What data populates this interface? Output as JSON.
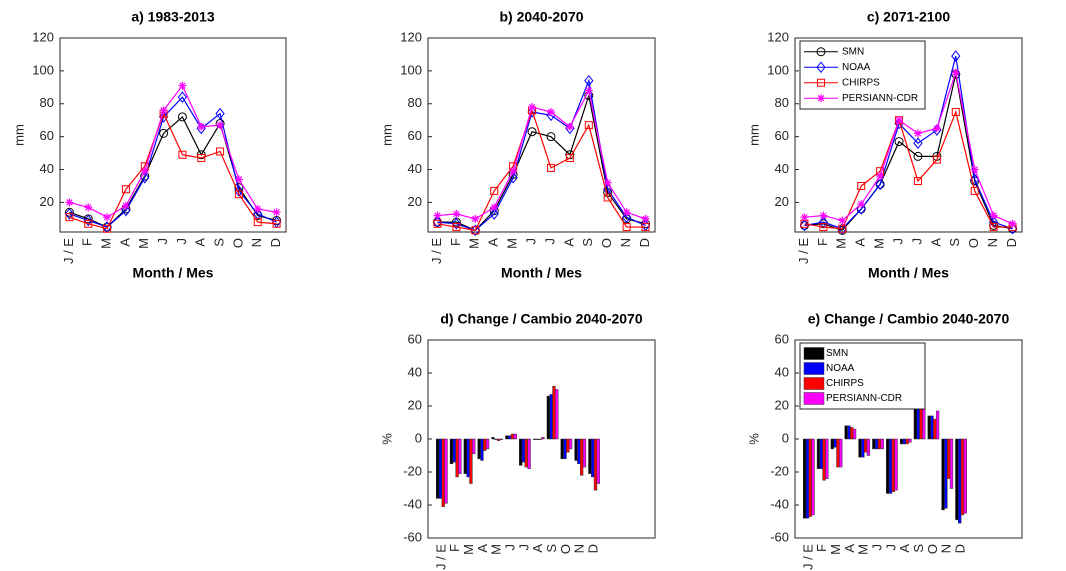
{
  "chart_data": [
    {
      "type": "line",
      "title": "a) 1983-2013",
      "x_label": "Month / Mes",
      "y_label": "mm",
      "categories": [
        "J / E",
        "F",
        "M",
        "A",
        "M",
        "J",
        "J",
        "A",
        "S",
        "O",
        "N",
        "D"
      ],
      "ylim": [
        2,
        120
      ],
      "yticks": [
        20,
        40,
        60,
        80,
        100,
        120
      ],
      "legend": false,
      "series": [
        {
          "name": "SMN",
          "color": "#000000",
          "marker": "o",
          "values": [
            14,
            10,
            5,
            16,
            36,
            62,
            72,
            49,
            68,
            29,
            12,
            9
          ]
        },
        {
          "name": "NOAA",
          "color": "#0000ff",
          "marker": "d",
          "values": [
            13,
            9,
            5,
            15,
            35,
            72,
            84,
            65,
            74,
            27,
            13,
            8
          ]
        },
        {
          "name": "CHIRPS",
          "color": "#ff0000",
          "marker": "s",
          "values": [
            11,
            7,
            4,
            28,
            42,
            74,
            49,
            47,
            51,
            25,
            8,
            7
          ]
        },
        {
          "name": "PERSIANN-CDR",
          "color": "#ff00ff",
          "marker": "*",
          "values": [
            20,
            17,
            11,
            18,
            39,
            76,
            91,
            66,
            67,
            34,
            16,
            14
          ]
        }
      ]
    },
    {
      "type": "line",
      "title": "b) 2040-2070",
      "x_label": "Month / Mes",
      "y_label": "mm",
      "categories": [
        "J / E",
        "F",
        "M",
        "A",
        "M",
        "J",
        "J",
        "A",
        "S",
        "O",
        "N",
        "D"
      ],
      "ylim": [
        2,
        120
      ],
      "yticks": [
        20,
        40,
        60,
        80,
        100,
        120
      ],
      "legend": false,
      "series": [
        {
          "name": "SMN",
          "color": "#000000",
          "marker": "o",
          "values": [
            8,
            8,
            3,
            15,
            37,
            63,
            60,
            49,
            85,
            26,
            10,
            7
          ]
        },
        {
          "name": "NOAA",
          "color": "#0000ff",
          "marker": "d",
          "values": [
            8,
            7,
            3,
            13,
            35,
            75,
            73,
            65,
            94,
            28,
            11,
            6
          ]
        },
        {
          "name": "CHIRPS",
          "color": "#ff0000",
          "marker": "s",
          "values": [
            7,
            5,
            3,
            27,
            42,
            76,
            41,
            47,
            67,
            23,
            5,
            5
          ]
        },
        {
          "name": "PERSIANN-CDR",
          "color": "#ff00ff",
          "marker": "*",
          "values": [
            12,
            13,
            10,
            17,
            39,
            78,
            75,
            66,
            88,
            32,
            14,
            10
          ]
        }
      ]
    },
    {
      "type": "line",
      "title": "c) 2071-2100",
      "x_label": "Month / Mes",
      "y_label": "mm",
      "categories": [
        "J / E",
        "F",
        "M",
        "A",
        "M",
        "J",
        "J",
        "A",
        "S",
        "O",
        "N",
        "D"
      ],
      "ylim": [
        2,
        120
      ],
      "yticks": [
        20,
        40,
        60,
        80,
        100,
        120
      ],
      "legend": true,
      "legend_position": "upper-left",
      "series": [
        {
          "name": "SMN",
          "color": "#000000",
          "marker": "o",
          "values": [
            6,
            7,
            3,
            16,
            31,
            57,
            48,
            48,
            98,
            33,
            6,
            4
          ]
        },
        {
          "name": "NOAA",
          "color": "#0000ff",
          "marker": "d",
          "values": [
            6,
            8,
            4,
            16,
            31,
            68,
            56,
            64,
            109,
            34,
            8,
            4
          ]
        },
        {
          "name": "CHIRPS",
          "color": "#ff0000",
          "marker": "s",
          "values": [
            7,
            5,
            4,
            30,
            39,
            70,
            33,
            46,
            75,
            27,
            5,
            5
          ]
        },
        {
          "name": "PERSIANN-CDR",
          "color": "#ff00ff",
          "marker": "*",
          "values": [
            11,
            12,
            9,
            19,
            36,
            70,
            62,
            65,
            99,
            40,
            12,
            7
          ]
        }
      ]
    },
    {
      "type": "bar",
      "title": "d) Change / Cambio 2040-2070",
      "y_label": "%",
      "categories": [
        "J / E",
        "F",
        "M",
        "A",
        "M",
        "J",
        "J",
        "A",
        "S",
        "O",
        "N",
        "D"
      ],
      "ylim": [
        -60,
        60
      ],
      "yticks": [
        -60,
        -40,
        -20,
        0,
        20,
        40,
        60
      ],
      "legend": false,
      "series": [
        {
          "name": "SMN",
          "color": "#000000",
          "values": [
            -36,
            -15,
            -21,
            -12,
            1,
            2,
            -16,
            0,
            26,
            -12,
            -13,
            -21
          ]
        },
        {
          "name": "NOAA",
          "color": "#0000ff",
          "values": [
            -36,
            -14,
            -23,
            -13,
            0,
            2,
            -14,
            0,
            27,
            -12,
            -15,
            -23
          ]
        },
        {
          "name": "CHIRPS",
          "color": "#ff0000",
          "values": [
            -41,
            -23,
            -27,
            -7,
            -1,
            3,
            -17,
            0,
            32,
            -8,
            -22,
            -31
          ]
        },
        {
          "name": "PERSIANN-CDR",
          "color": "#ff00ff",
          "values": [
            -39,
            -21,
            -9,
            -6,
            0,
            3,
            -18,
            1,
            30,
            -6,
            -17,
            -27
          ]
        }
      ]
    },
    {
      "type": "bar",
      "title": "e) Change / Cambio 2040-2070",
      "y_label": "%",
      "categories": [
        "J / E",
        "F",
        "M",
        "A",
        "M",
        "J",
        "J",
        "A",
        "S",
        "O",
        "N",
        "D"
      ],
      "ylim": [
        -60,
        60
      ],
      "yticks": [
        -60,
        -40,
        -20,
        0,
        20,
        40,
        60
      ],
      "legend": true,
      "legend_position": "upper-left",
      "series": [
        {
          "name": "SMN",
          "color": "#000000",
          "values": [
            -48,
            -18,
            -6,
            8,
            -11,
            -6,
            -33,
            -3,
            46,
            14,
            -43,
            -49
          ]
        },
        {
          "name": "NOAA",
          "color": "#0000ff",
          "values": [
            -48,
            -18,
            -5,
            8,
            -11,
            -6,
            -33,
            -3,
            47,
            14,
            -42,
            -51
          ]
        },
        {
          "name": "CHIRPS",
          "color": "#ff0000",
          "values": [
            -47,
            -25,
            -17,
            7,
            -8,
            -6,
            -32,
            -3,
            46,
            12,
            -24,
            -46
          ]
        },
        {
          "name": "PERSIANN-CDR",
          "color": "#ff00ff",
          "values": [
            -46,
            -24,
            -17,
            6,
            -10,
            -6,
            -31,
            -2,
            45,
            17,
            -30,
            -45
          ]
        }
      ]
    }
  ]
}
